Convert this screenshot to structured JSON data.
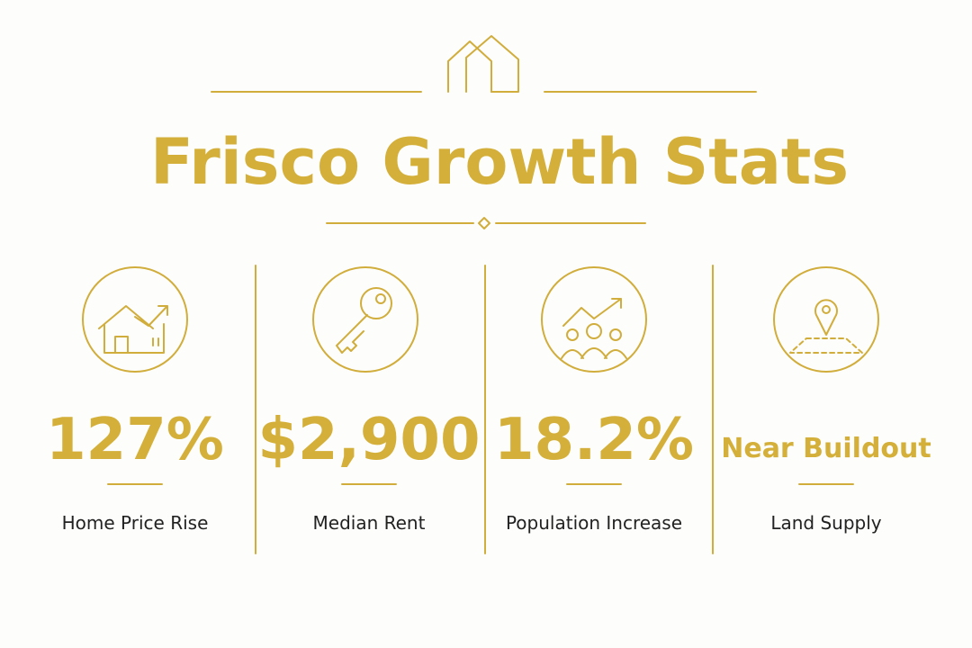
{
  "header": {
    "title": "Frisco Growth Stats"
  },
  "stats": [
    {
      "value": "127%",
      "label": "Home Price Rise"
    },
    {
      "value": "$2,900",
      "label": "Median Rent"
    },
    {
      "value": "18.2%",
      "label": "Population Increase"
    },
    {
      "value": "Near Buildout",
      "label": "Land Supply"
    }
  ]
}
